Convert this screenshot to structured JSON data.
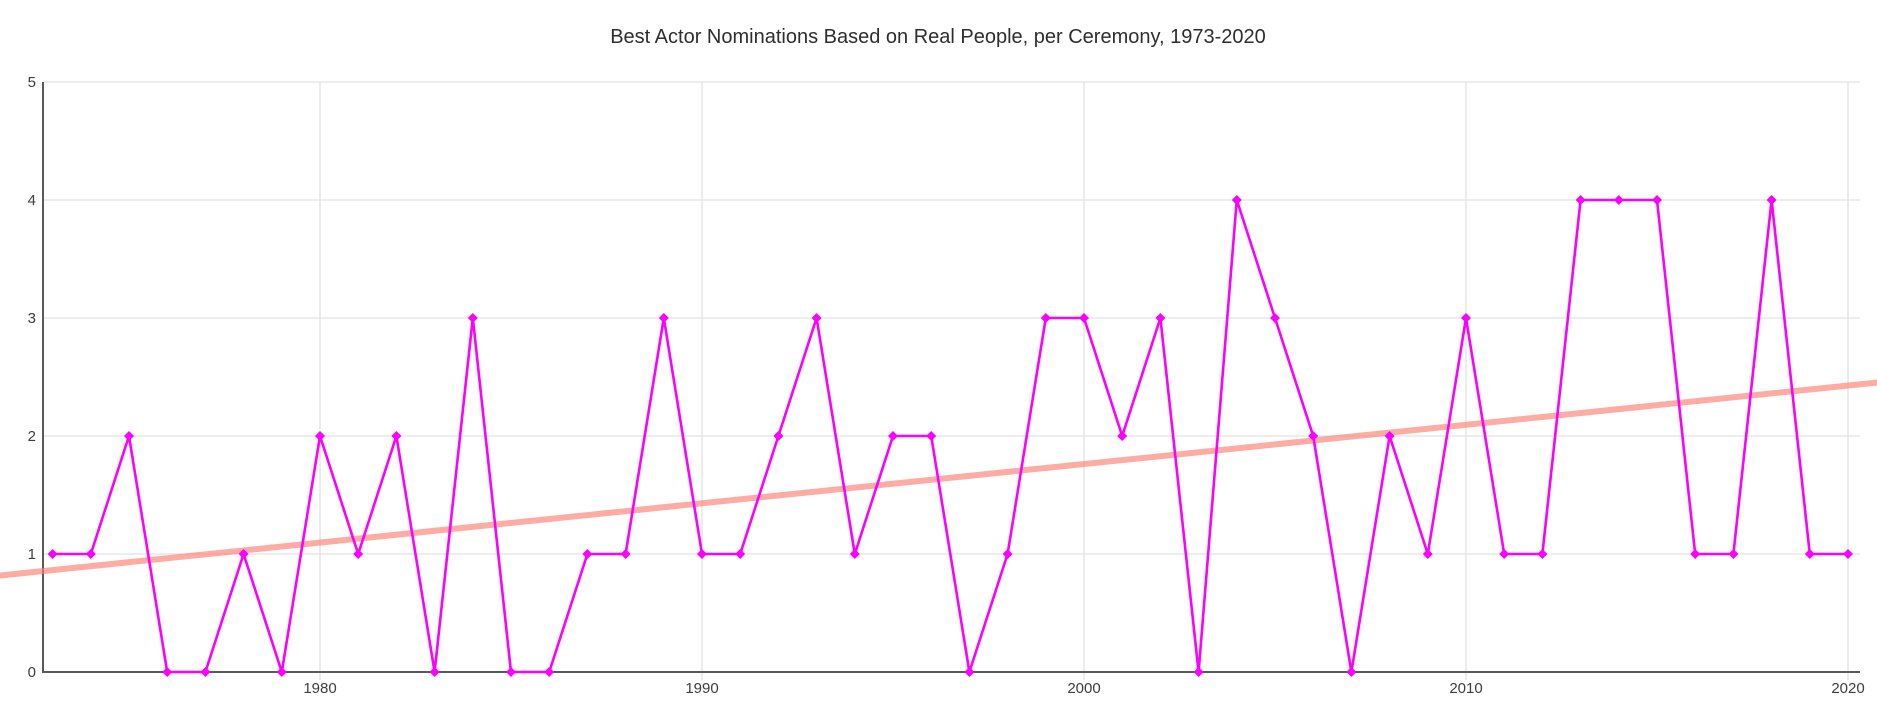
{
  "title": "Best Actor Nominations Based on Real People, per Ceremony, 1973-2020",
  "chart_data": {
    "type": "line",
    "title": "Best Actor Nominations Based on Real People, per Ceremony, 1973-2020",
    "x": [
      1973,
      1974,
      1975,
      1976,
      1977,
      1978,
      1979,
      1980,
      1981,
      1982,
      1983,
      1984,
      1985,
      1986,
      1987,
      1988,
      1989,
      1990,
      1991,
      1992,
      1993,
      1994,
      1995,
      1996,
      1997,
      1998,
      1999,
      2000,
      2001,
      2002,
      2003,
      2004,
      2005,
      2006,
      2007,
      2008,
      2009,
      2010,
      2011,
      2012,
      2013,
      2014,
      2015,
      2016,
      2017,
      2018,
      2019,
      2020
    ],
    "values": [
      1,
      1,
      2,
      0,
      0,
      1,
      0,
      2,
      1,
      2,
      0,
      3,
      0,
      0,
      1,
      1,
      3,
      1,
      1,
      2,
      3,
      1,
      2,
      2,
      0,
      1,
      3,
      3,
      2,
      3,
      0,
      4,
      3,
      2,
      0,
      2,
      1,
      3,
      1,
      1,
      4,
      4,
      4,
      1,
      1,
      4,
      1,
      1
    ],
    "trendline": {
      "type": "linear_regression"
    },
    "xlabel": "",
    "ylabel": "",
    "xlim": [
      1973,
      2020
    ],
    "ylim": [
      0,
      5
    ],
    "x_tick_labels": [
      "1980",
      "1990",
      "2000",
      "2010",
      "2020"
    ],
    "x_tick_years": [
      1980,
      1990,
      2000,
      2010,
      2020
    ],
    "y_tick_labels": [
      "0",
      "1",
      "2",
      "3",
      "4",
      "5"
    ],
    "y_tick_values": [
      0,
      1,
      2,
      3,
      4,
      5
    ],
    "grid": true,
    "legend": "none",
    "colors": {
      "series": "#fb00fb",
      "trend": "rgba(250,128,114,0.65)",
      "grid": "#e2e2e2",
      "axis": "#59595b",
      "tick_label": "#3d3d3d",
      "title": "#2e2e2e",
      "background": "#ffffff"
    }
  }
}
